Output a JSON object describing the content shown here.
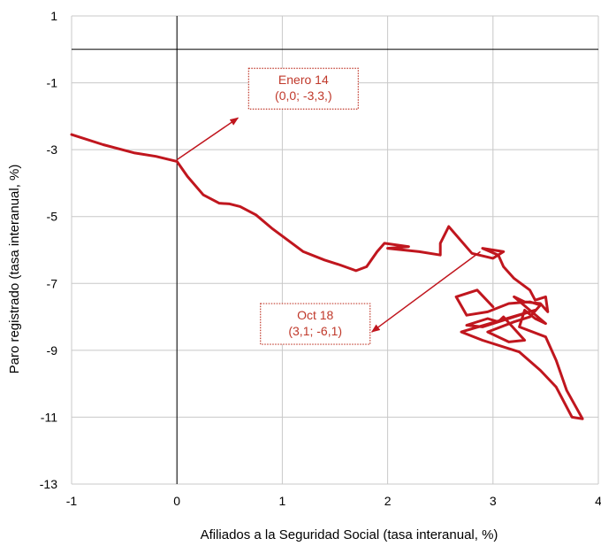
{
  "chart_data": {
    "type": "line",
    "title": "",
    "xlabel": "Afiliados a la Seguridad Social (tasa interanual, %)",
    "ylabel": "Paro registrado (tasa interanual, %)",
    "xlim": [
      -1,
      4
    ],
    "ylim": [
      -13,
      1
    ],
    "xticks": [
      -1,
      0,
      1,
      2,
      3,
      4
    ],
    "yticks": [
      1,
      -1,
      -3,
      -5,
      -7,
      -9,
      -11,
      -13
    ],
    "grid": true,
    "line_color": "#c0161e",
    "series": [
      {
        "x": [
          -1.0,
          -0.7,
          -0.4,
          -0.2,
          0.0,
          0.1,
          0.25,
          0.4,
          0.5,
          0.6,
          0.75,
          0.9,
          1.05,
          1.2,
          1.4,
          1.55,
          1.7,
          1.8,
          1.9,
          1.97,
          2.2,
          2.0,
          2.3,
          2.5,
          2.5,
          2.58,
          2.8,
          3.0,
          3.1,
          2.9,
          3.05,
          3.1,
          3.2,
          3.35,
          3.4,
          3.5,
          3.52,
          3.45,
          3.3,
          3.2,
          3.5,
          3.4,
          3.3,
          3.25,
          3.5,
          3.6,
          3.7,
          3.85,
          3.75,
          3.6,
          3.45,
          3.25,
          2.9,
          2.7,
          3.4,
          2.9,
          2.75,
          2.95,
          3.05,
          3.1,
          3.3,
          3.15,
          2.95,
          3.2,
          3.35,
          3.45,
          3.35,
          3.15,
          2.95,
          2.75,
          2.65,
          2.85,
          3.0
        ],
        "y": [
          -2.55,
          -2.85,
          -3.1,
          -3.2,
          -3.35,
          -3.8,
          -4.35,
          -4.6,
          -4.62,
          -4.7,
          -4.95,
          -5.35,
          -5.7,
          -6.05,
          -6.3,
          -6.45,
          -6.62,
          -6.5,
          -6.05,
          -5.8,
          -5.9,
          -5.95,
          -6.05,
          -6.15,
          -5.8,
          -5.3,
          -6.1,
          -6.25,
          -6.05,
          -5.95,
          -6.15,
          -6.5,
          -6.85,
          -7.2,
          -7.5,
          -7.4,
          -7.85,
          -7.6,
          -7.55,
          -7.4,
          -8.2,
          -8.05,
          -7.8,
          -8.3,
          -8.6,
          -9.3,
          -10.2,
          -11.05,
          -11.0,
          -10.1,
          -9.6,
          -9.05,
          -8.7,
          -8.45,
          -7.8,
          -8.3,
          -8.25,
          -8.05,
          -8.15,
          -8.0,
          -8.7,
          -8.75,
          -8.45,
          -8.15,
          -8.0,
          -7.65,
          -7.55,
          -7.6,
          -7.85,
          -7.95,
          -7.4,
          -7.2,
          -7.7
        ]
      }
    ],
    "annotations": [
      {
        "lines": [
          "Enero 14",
          "(0,0;  -3,3,)"
        ],
        "point": [
          0.0,
          -3.3
        ],
        "arrow_tip": [
          0.58,
          -2.05
        ]
      },
      {
        "lines": [
          "Oct 18",
          "(3,1; -6,1)"
        ],
        "point": [
          2.88,
          -6.05
        ],
        "arrow_tip": [
          1.85,
          -8.45
        ]
      }
    ],
    "annotation_color": "#c0392b"
  }
}
